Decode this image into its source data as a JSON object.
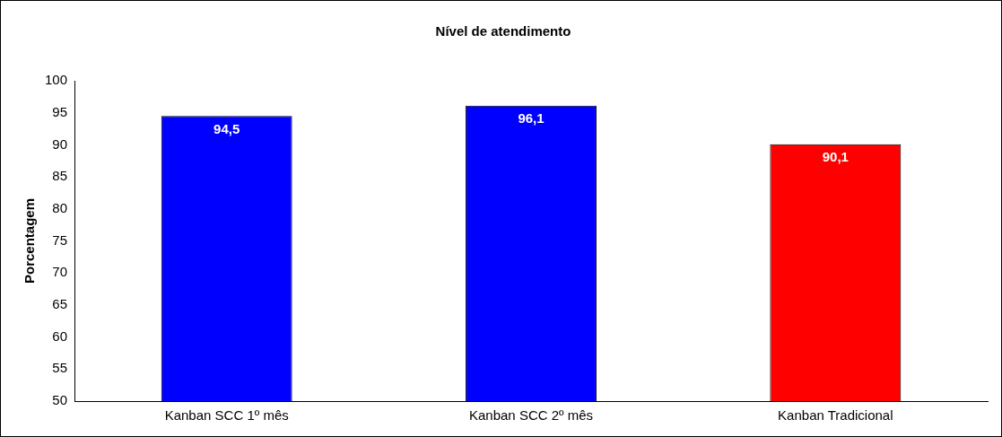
{
  "chart_data": {
    "type": "bar",
    "title": "Nível de atendimento",
    "ylabel": "Porcentagem",
    "categories": [
      "Kanban SCC 1º mês",
      "Kanban SCC 2º mês",
      "Kanban Tradicional"
    ],
    "values": [
      94.5,
      96.1,
      90.1
    ],
    "colors": [
      "#0000ff",
      "#0000ff",
      "#ff0000"
    ],
    "value_labels": [
      "94,5",
      "96,1",
      "90,1"
    ],
    "ylim": [
      50,
      100
    ],
    "yticks": [
      50,
      55,
      60,
      65,
      70,
      75,
      80,
      85,
      90,
      95,
      100
    ],
    "grid": false,
    "legend": false
  }
}
